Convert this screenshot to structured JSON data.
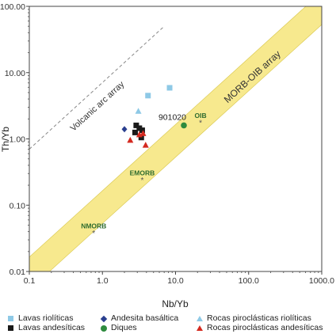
{
  "chart_data": {
    "type": "scatter",
    "x_scale": "log",
    "y_scale": "log",
    "xlim": [
      0.1,
      1000
    ],
    "ylim": [
      0.01,
      100
    ],
    "xlabel": "Nb/Yb",
    "ylabel": "Th/Yb",
    "x_ticks": [
      "0.1",
      "1.0",
      "10.0",
      "100.0",
      "1000.0"
    ],
    "y_ticks": [
      "0.01",
      "0.10",
      "1.00",
      "10.00",
      "100.00"
    ],
    "grid": false,
    "band": {
      "label": "MORB-OIB array",
      "color": "#f7e98e"
    },
    "arc_line": {
      "label": "Volcanic arc array",
      "style": "dashed",
      "from": [
        0.1,
        0.7
      ],
      "to": [
        7,
        50
      ]
    },
    "reference_points": [
      {
        "label": "NMORB",
        "x": 0.76,
        "y": 0.038
      },
      {
        "label": "EMORB",
        "x": 3.5,
        "y": 0.24
      },
      {
        "label": "OIB",
        "x": 22,
        "y": 1.75
      }
    ],
    "sample_label": {
      "text": "901020",
      "x": 13,
      "y": 1.6
    },
    "series": [
      {
        "name": "Lavas riolíticas",
        "marker": "square",
        "color": "#8ec9e6",
        "points": [
          [
            4.2,
            4.5
          ],
          [
            8.3,
            5.9
          ]
        ]
      },
      {
        "name": "Lavas andesíticas",
        "marker": "square",
        "color": "#1a1a1a",
        "points": [
          [
            2.9,
            1.6
          ],
          [
            3.2,
            1.45
          ],
          [
            3.5,
            1.35
          ],
          [
            2.8,
            1.25
          ],
          [
            3.4,
            1.05
          ]
        ]
      },
      {
        "name": "Andesita basáltica",
        "marker": "diamond",
        "color": "#2a3f8f",
        "points": [
          [
            2.0,
            1.4
          ]
        ]
      },
      {
        "name": "Diques",
        "marker": "circle",
        "color": "#2e8b3e",
        "points": [
          [
            13,
            1.6
          ]
        ]
      },
      {
        "name": "Rocas piroclásticas riolíticas",
        "marker": "triangle",
        "color": "#8ec9e6",
        "points": [
          [
            3.1,
            2.6
          ]
        ]
      },
      {
        "name": "Rocas piroclásticas andesíticas",
        "marker": "triangle",
        "color": "#d42a20",
        "points": [
          [
            2.4,
            0.95
          ],
          [
            3.6,
            1.2
          ],
          [
            3.9,
            0.8
          ],
          [
            3.2,
            1.15
          ]
        ]
      }
    ]
  },
  "legend": [
    {
      "label": "Lavas riolíticas",
      "marker": "square",
      "color": "#8ec9e6"
    },
    {
      "label": "Andesita basáltica",
      "marker": "diamond",
      "color": "#2a3f8f"
    },
    {
      "label": "Rocas piroclásticas riolíticas",
      "marker": "triangle",
      "color": "#8ec9e6"
    },
    {
      "label": "Lavas andesíticas",
      "marker": "square",
      "color": "#1a1a1a"
    },
    {
      "label": "Diques",
      "marker": "circle",
      "color": "#2e8b3e"
    },
    {
      "label": "Rocas piroclásticas andesíticas",
      "marker": "triangle",
      "color": "#d42a20"
    }
  ]
}
